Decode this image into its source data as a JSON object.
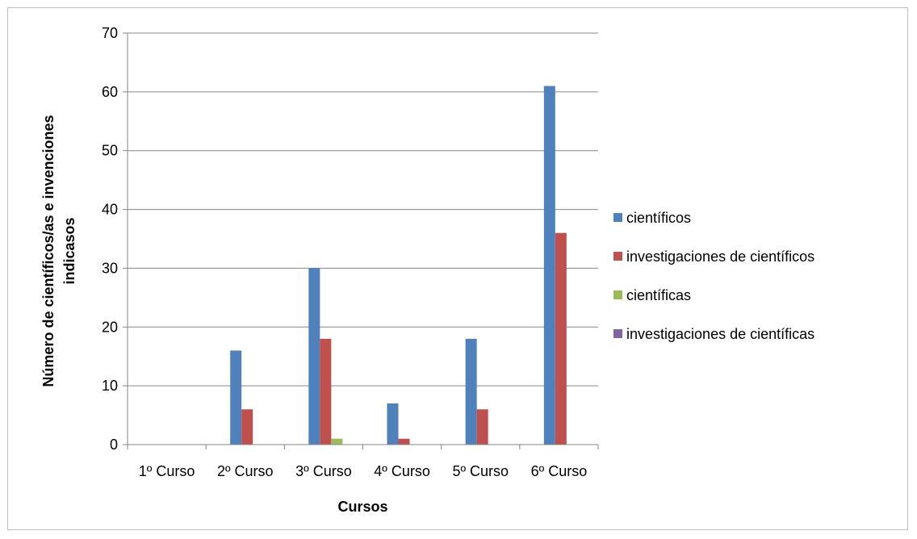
{
  "chart_data": {
    "type": "bar",
    "title": "",
    "xlabel": "Cursos",
    "ylabel": "Número de científicos/as e invenciones indicasos",
    "ylabel_lines": [
      "Número de científicos/as e invenciones",
      "indicasos"
    ],
    "categories": [
      "1º Curso",
      "2º Curso",
      "3º Curso",
      "4º Curso",
      "5º Curso",
      "6º Curso"
    ],
    "series": [
      {
        "name": "científicos",
        "values": [
          0,
          16,
          30,
          7,
          18,
          61
        ],
        "color": "#4f81bd"
      },
      {
        "name": "investigaciones de científicos",
        "values": [
          0,
          6,
          18,
          1,
          6,
          36
        ],
        "color": "#c0504d"
      },
      {
        "name": "científicas",
        "values": [
          0,
          0,
          1,
          0,
          0,
          0
        ],
        "color": "#9bbb59"
      },
      {
        "name": "investigaciones de científicas",
        "values": [
          0,
          0,
          0,
          0,
          0,
          0
        ],
        "color": "#8064a2"
      }
    ],
    "ylim": [
      0,
      70
    ],
    "yticks": [
      0,
      10,
      20,
      30,
      40,
      50,
      60,
      70
    ],
    "grid": true,
    "legend": "right"
  }
}
